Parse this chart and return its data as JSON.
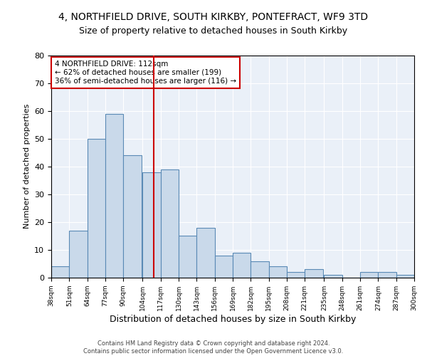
{
  "title1": "4, NORTHFIELD DRIVE, SOUTH KIRKBY, PONTEFRACT, WF9 3TD",
  "title2": "Size of property relative to detached houses in South Kirkby",
  "xlabel": "Distribution of detached houses by size in South Kirkby",
  "ylabel": "Number of detached properties",
  "footer1": "Contains HM Land Registry data © Crown copyright and database right 2024.",
  "footer2": "Contains public sector information licensed under the Open Government Licence v3.0.",
  "annotation_line1": "4 NORTHFIELD DRIVE: 112sqm",
  "annotation_line2": "← 62% of detached houses are smaller (199)",
  "annotation_line3": "36% of semi-detached houses are larger (116) →",
  "property_sqm": 112,
  "bar_left_edges": [
    38,
    51,
    64,
    77,
    90,
    104,
    117,
    130,
    143,
    156,
    169,
    182,
    195,
    208,
    221,
    235,
    248,
    261,
    274,
    287
  ],
  "bar_heights": [
    4,
    17,
    50,
    59,
    44,
    38,
    39,
    15,
    18,
    8,
    9,
    6,
    4,
    2,
    3,
    1,
    0,
    2,
    2,
    1
  ],
  "bin_width": 13,
  "bar_color": "#c9d9ea",
  "bar_edge_color": "#5a8ab5",
  "vline_color": "#cc0000",
  "vline_x": 112,
  "tick_labels": [
    "38sqm",
    "51sqm",
    "64sqm",
    "77sqm",
    "90sqm",
    "104sqm",
    "117sqm",
    "130sqm",
    "143sqm",
    "156sqm",
    "169sqm",
    "182sqm",
    "195sqm",
    "208sqm",
    "221sqm",
    "235sqm",
    "248sqm",
    "261sqm",
    "274sqm",
    "287sqm",
    "300sqm"
  ],
  "ylim": [
    0,
    80
  ],
  "yticks": [
    0,
    10,
    20,
    30,
    40,
    50,
    60,
    70,
    80
  ],
  "bg_color": "#eaf0f8",
  "annotation_box_color": "#cc0000",
  "title_fontsize": 10,
  "subtitle_fontsize": 9,
  "ylabel_fontsize": 8,
  "xlabel_fontsize": 9,
  "footer_fontsize": 6,
  "tick_fontsize": 6.5,
  "annotation_fontsize": 7.5
}
